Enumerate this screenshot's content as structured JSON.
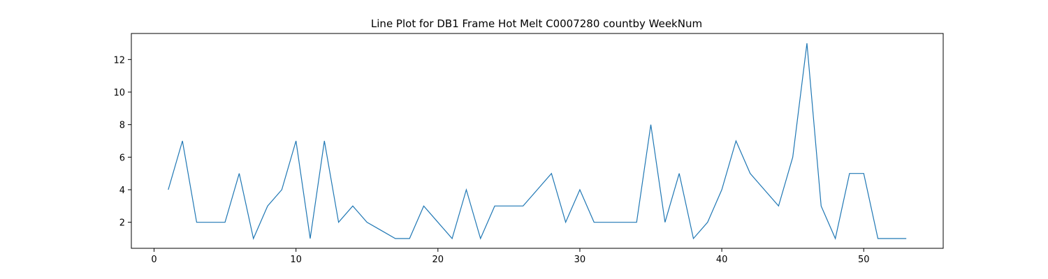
{
  "chart_data": {
    "type": "line",
    "title": "Line Plot for DB1 Frame Hot Melt C0007280 countby WeekNum",
    "xlabel": "",
    "ylabel": "",
    "xlim": [
      -1.6,
      55.6
    ],
    "ylim": [
      0.4,
      13.6
    ],
    "xticks": [
      0,
      10,
      20,
      30,
      40,
      50
    ],
    "yticks": [
      2,
      4,
      6,
      8,
      10,
      12
    ],
    "grid": false,
    "legend": "none",
    "line_color": "#1f77b4",
    "series": [
      {
        "x": [
          1,
          2,
          3,
          4,
          5,
          6,
          7,
          8,
          9,
          10,
          11,
          12,
          13,
          14,
          15,
          16,
          17,
          18,
          19,
          20,
          21,
          22,
          23,
          24,
          25,
          26,
          27,
          28,
          29,
          30,
          31,
          32,
          33,
          34,
          35,
          36,
          37,
          38,
          39,
          40,
          41,
          42,
          43,
          44,
          45,
          46,
          47,
          48,
          49,
          50,
          51,
          52,
          53
        ],
        "values": [
          4,
          7,
          2,
          2,
          2,
          5,
          1,
          3,
          4,
          7,
          1,
          7,
          2,
          3,
          2,
          1.5,
          1,
          1,
          3,
          2,
          1,
          4,
          1,
          3,
          3,
          3,
          4,
          5,
          2,
          4,
          2,
          2,
          2,
          2,
          8,
          2,
          5,
          1,
          2,
          4,
          7,
          5,
          4,
          3,
          6,
          13,
          3,
          1,
          5,
          5,
          1,
          1,
          1
        ]
      }
    ]
  }
}
